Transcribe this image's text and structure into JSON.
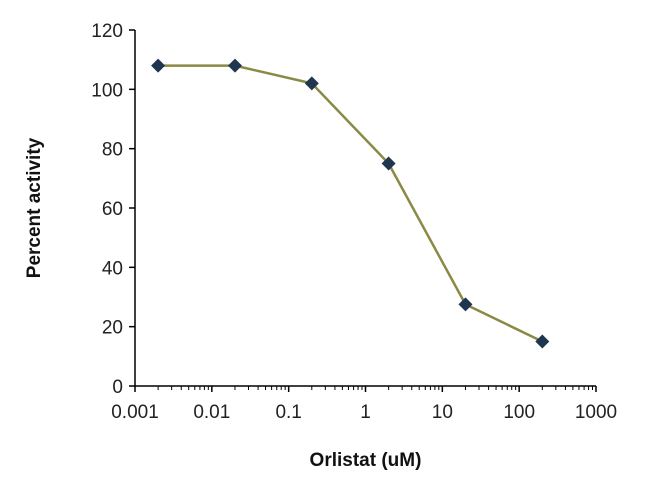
{
  "chart_data": {
    "type": "line",
    "title": "",
    "xlabel": "Orlistat (uM)",
    "ylabel": "Percent activity",
    "xscale": "log",
    "xlim": [
      0.001,
      1000
    ],
    "ylim": [
      0,
      120
    ],
    "x_ticks": [
      0.001,
      0.01,
      0.1,
      1,
      10,
      100,
      1000
    ],
    "x_tick_labels": [
      "0.001",
      "0.01",
      "0.1",
      "1",
      "10",
      "100",
      "1000"
    ],
    "y_ticks": [
      0,
      20,
      40,
      60,
      80,
      100,
      120
    ],
    "y_tick_labels": [
      "0",
      "20",
      "40",
      "60",
      "80",
      "100",
      "120"
    ],
    "grid": false,
    "legend": "none",
    "series": [
      {
        "x": [
          0.002,
          0.02,
          0.2,
          2,
          20,
          200
        ],
        "y": [
          108,
          108,
          102,
          75,
          27.5,
          15
        ],
        "line_color": "#8a8a46",
        "marker": "diamond",
        "marker_color": "#1f3550"
      }
    ]
  }
}
